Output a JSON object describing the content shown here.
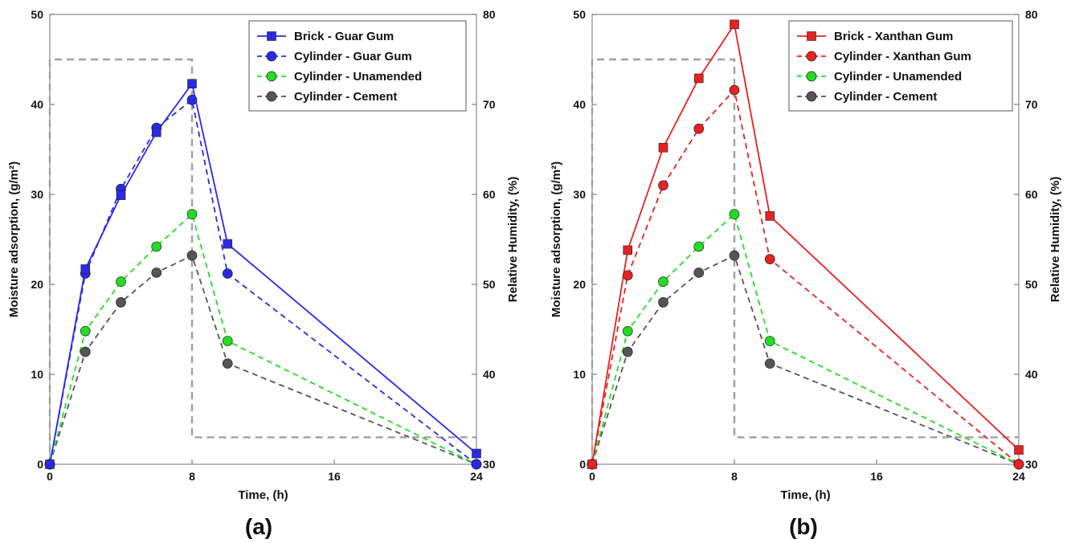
{
  "chart_data": [
    {
      "type": "line",
      "panel_label": "(a)",
      "xlabel": "Time, (h)",
      "ylabel": "Moisture adsorption, (g/m²)",
      "y2label": "Relative Humidity, (%)",
      "xlim": [
        0,
        24
      ],
      "ylim": [
        0,
        50
      ],
      "y2lim": [
        30,
        80
      ],
      "xticks": [
        0,
        8,
        16,
        24
      ],
      "yticks": [
        0,
        10,
        20,
        30,
        40,
        50
      ],
      "y2ticks": [
        30,
        40,
        50,
        60,
        70,
        80
      ],
      "legend_position": "top-right",
      "grid": false,
      "humidity": {
        "x": [
          0,
          0,
          8,
          8,
          24
        ],
        "y": [
          30,
          75,
          75,
          33,
          33
        ],
        "color": "#a0a0a0"
      },
      "series": [
        {
          "name": "Brick - Guar Gum",
          "marker": "square",
          "dash": "solid",
          "color": "#2a2ae6",
          "x": [
            0,
            2,
            4,
            6,
            8,
            10,
            24
          ],
          "y": [
            0,
            21.7,
            29.9,
            36.9,
            42.3,
            24.5,
            1.2
          ]
        },
        {
          "name": "Cylinder - Guar Gum",
          "marker": "circle",
          "dash": "dashed",
          "color": "#2a2ae6",
          "x": [
            0,
            2,
            4,
            6,
            8,
            10,
            24
          ],
          "y": [
            0,
            21.2,
            30.6,
            37.4,
            40.5,
            21.2,
            0
          ]
        },
        {
          "name": "Cylinder - Unamended",
          "marker": "circle",
          "dash": "dashed",
          "color": "#22dd22",
          "x": [
            0,
            2,
            4,
            6,
            8,
            10,
            24
          ],
          "y": [
            0,
            14.8,
            20.3,
            24.2,
            27.8,
            13.7,
            0
          ]
        },
        {
          "name": "Cylinder - Cement",
          "marker": "circle",
          "dash": "dashed",
          "color": "#555555",
          "x": [
            0,
            2,
            4,
            6,
            8,
            10,
            24
          ],
          "y": [
            0,
            12.5,
            18.0,
            21.3,
            23.2,
            11.2,
            0
          ]
        }
      ]
    },
    {
      "type": "line",
      "panel_label": "(b)",
      "xlabel": "Time, (h)",
      "ylabel": "Moisture adsorption, (g/m²)",
      "y2label": "Relative Humidity, (%)",
      "xlim": [
        0,
        24
      ],
      "ylim": [
        0,
        50
      ],
      "y2lim": [
        30,
        80
      ],
      "xticks": [
        0,
        8,
        16,
        24
      ],
      "yticks": [
        0,
        10,
        20,
        30,
        40,
        50
      ],
      "y2ticks": [
        30,
        40,
        50,
        60,
        70,
        80
      ],
      "legend_position": "top-right",
      "grid": false,
      "humidity": {
        "x": [
          0,
          0,
          8,
          8,
          24
        ],
        "y": [
          30,
          75,
          75,
          33,
          33
        ],
        "color": "#a0a0a0"
      },
      "series": [
        {
          "name": "Brick - Xanthan Gum",
          "marker": "square",
          "dash": "solid",
          "color": "#e62222",
          "x": [
            0,
            2,
            4,
            6,
            8,
            10,
            24
          ],
          "y": [
            0,
            23.8,
            35.2,
            42.9,
            48.9,
            27.6,
            1.6
          ]
        },
        {
          "name": "Cylinder - Xanthan Gum",
          "marker": "circle",
          "dash": "dashed",
          "color": "#e62222",
          "x": [
            0,
            2,
            4,
            6,
            8,
            10,
            24
          ],
          "y": [
            0,
            21.0,
            31.0,
            37.3,
            41.6,
            22.8,
            0
          ]
        },
        {
          "name": "Cylinder - Unamended",
          "marker": "circle",
          "dash": "dashed",
          "color": "#22dd22",
          "x": [
            0,
            2,
            4,
            6,
            8,
            10,
            24
          ],
          "y": [
            0,
            14.8,
            20.3,
            24.2,
            27.8,
            13.7,
            0
          ]
        },
        {
          "name": "Cylinder - Cement",
          "marker": "circle",
          "dash": "dashed",
          "color": "#555555",
          "x": [
            0,
            2,
            4,
            6,
            8,
            10,
            24
          ],
          "y": [
            0,
            12.5,
            18.0,
            21.3,
            23.2,
            11.2,
            0
          ]
        }
      ]
    }
  ]
}
